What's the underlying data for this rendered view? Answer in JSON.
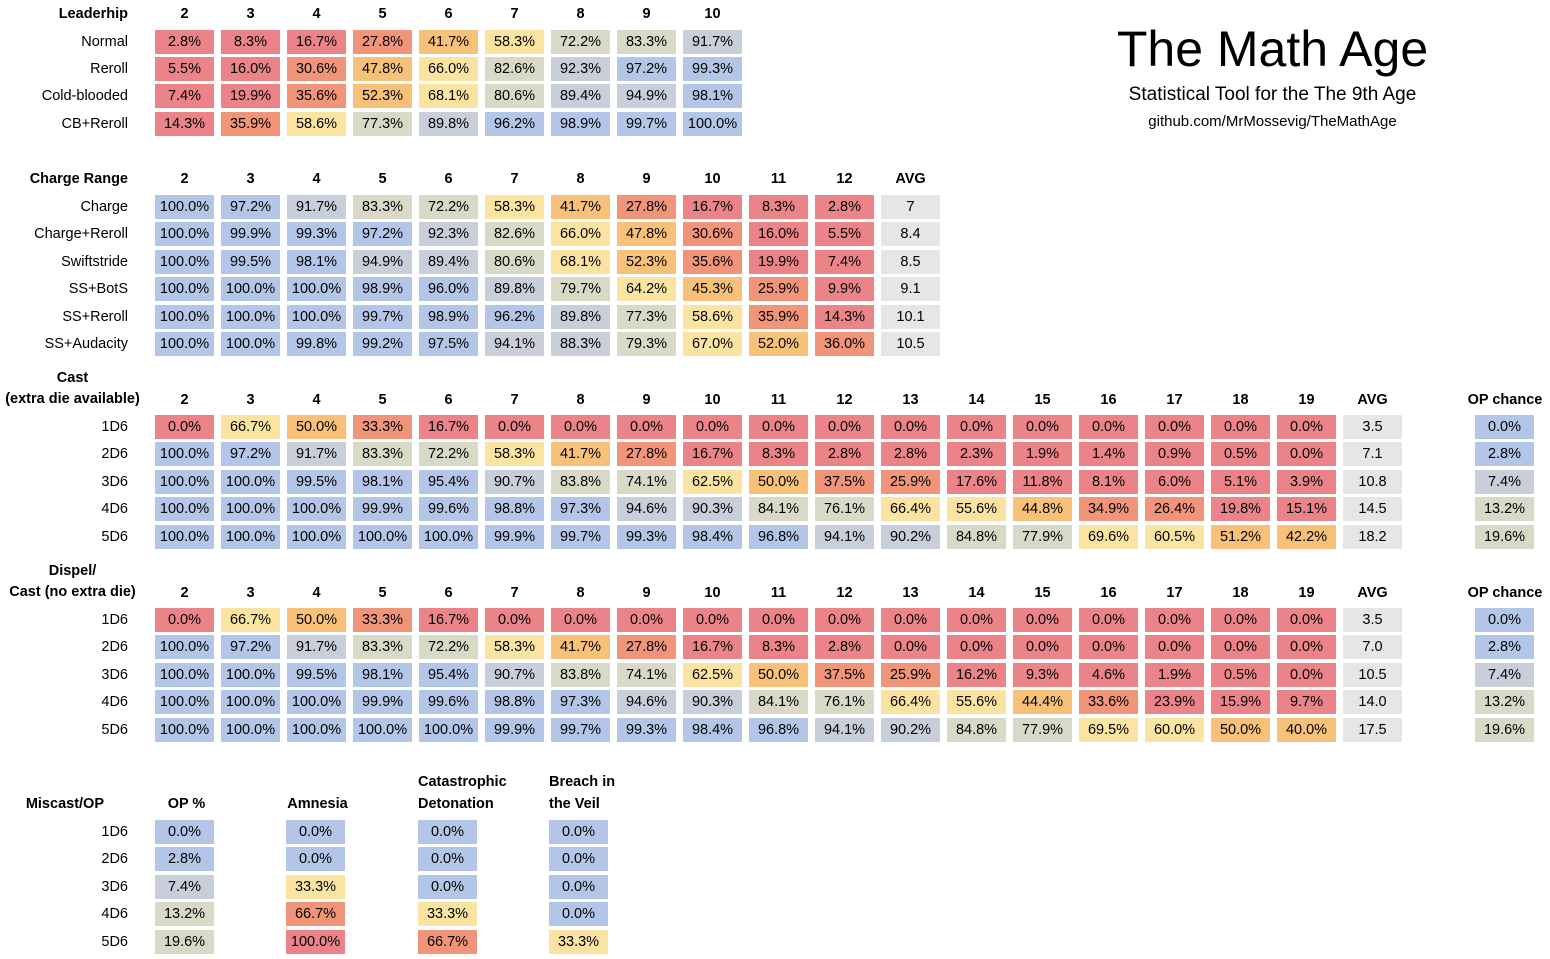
{
  "brand": {
    "title": "The Math Age",
    "subtitle": "Statistical Tool for the The 9th Age",
    "url": "github.com/MrMossevig/TheMathAge"
  },
  "palette": {
    "c1": "#b4c6e7",
    "c2": "#c9cedb",
    "c3": "#d9d9c7",
    "c4": "#fbe4a2",
    "c5": "#f8c17a",
    "c6": "#f0947a",
    "c7": "#ea8489",
    "gray": "#e6e6e6"
  },
  "leadership": {
    "title": "Leaderhip",
    "headers": [
      "2",
      "3",
      "4",
      "5",
      "6",
      "7",
      "8",
      "9",
      "10"
    ],
    "rows": [
      {
        "label": "Normal",
        "values": [
          "2.8%",
          "8.3%",
          "16.7%",
          "27.8%",
          "41.7%",
          "58.3%",
          "72.2%",
          "83.3%",
          "91.7%"
        ]
      },
      {
        "label": "Reroll",
        "values": [
          "5.5%",
          "16.0%",
          "30.6%",
          "47.8%",
          "66.0%",
          "82.6%",
          "92.3%",
          "97.2%",
          "99.3%"
        ]
      },
      {
        "label": "Cold-blooded",
        "values": [
          "7.4%",
          "19.9%",
          "35.6%",
          "52.3%",
          "68.1%",
          "80.6%",
          "89.4%",
          "94.9%",
          "98.1%"
        ]
      },
      {
        "label": "CB+Reroll",
        "values": [
          "14.3%",
          "35.9%",
          "58.6%",
          "77.3%",
          "89.8%",
          "96.2%",
          "98.9%",
          "99.7%",
          "100.0%"
        ]
      }
    ]
  },
  "charge": {
    "title": "Charge Range",
    "headers": [
      "2",
      "3",
      "4",
      "5",
      "6",
      "7",
      "8",
      "9",
      "10",
      "11",
      "12"
    ],
    "avg_header": "AVG",
    "rows": [
      {
        "label": "Charge",
        "values": [
          "100.0%",
          "97.2%",
          "91.7%",
          "83.3%",
          "72.2%",
          "58.3%",
          "41.7%",
          "27.8%",
          "16.7%",
          "8.3%",
          "2.8%"
        ],
        "avg": "7"
      },
      {
        "label": "Charge+Reroll",
        "values": [
          "100.0%",
          "99.9%",
          "99.3%",
          "97.2%",
          "92.3%",
          "82.6%",
          "66.0%",
          "47.8%",
          "30.6%",
          "16.0%",
          "5.5%"
        ],
        "avg": "8.4"
      },
      {
        "label": "Swiftstride",
        "values": [
          "100.0%",
          "99.5%",
          "98.1%",
          "94.9%",
          "89.4%",
          "80.6%",
          "68.1%",
          "52.3%",
          "35.6%",
          "19.9%",
          "7.4%"
        ],
        "avg": "8.5"
      },
      {
        "label": "SS+BotS",
        "values": [
          "100.0%",
          "100.0%",
          "100.0%",
          "98.9%",
          "96.0%",
          "89.8%",
          "79.7%",
          "64.2%",
          "45.3%",
          "25.9%",
          "9.9%"
        ],
        "avg": "9.1"
      },
      {
        "label": "SS+Reroll",
        "values": [
          "100.0%",
          "100.0%",
          "100.0%",
          "99.7%",
          "98.9%",
          "96.2%",
          "89.8%",
          "77.3%",
          "58.6%",
          "35.9%",
          "14.3%"
        ],
        "avg": "10.1"
      },
      {
        "label": "SS+Audacity",
        "values": [
          "100.0%",
          "100.0%",
          "99.8%",
          "99.2%",
          "97.5%",
          "94.1%",
          "88.3%",
          "79.3%",
          "67.0%",
          "52.0%",
          "36.0%"
        ],
        "avg": "10.5"
      }
    ]
  },
  "cast": {
    "title_line1": "Cast",
    "title_line2": "(extra die available)",
    "headers": [
      "2",
      "3",
      "4",
      "5",
      "6",
      "7",
      "8",
      "9",
      "10",
      "11",
      "12",
      "13",
      "14",
      "15",
      "16",
      "17",
      "18",
      "19"
    ],
    "avg_header": "AVG",
    "op_header": "OP chance",
    "rows": [
      {
        "label": "1D6",
        "values": [
          "0.0%",
          "66.7%",
          "50.0%",
          "33.3%",
          "16.7%",
          "0.0%",
          "0.0%",
          "0.0%",
          "0.0%",
          "0.0%",
          "0.0%",
          "0.0%",
          "0.0%",
          "0.0%",
          "0.0%",
          "0.0%",
          "0.0%",
          "0.0%"
        ],
        "avg": "3.5",
        "op": "0.0%"
      },
      {
        "label": "2D6",
        "values": [
          "100.0%",
          "97.2%",
          "91.7%",
          "83.3%",
          "72.2%",
          "58.3%",
          "41.7%",
          "27.8%",
          "16.7%",
          "8.3%",
          "2.8%",
          "2.8%",
          "2.3%",
          "1.9%",
          "1.4%",
          "0.9%",
          "0.5%",
          "0.0%"
        ],
        "avg": "7.1",
        "op": "2.8%"
      },
      {
        "label": "3D6",
        "values": [
          "100.0%",
          "100.0%",
          "99.5%",
          "98.1%",
          "95.4%",
          "90.7%",
          "83.8%",
          "74.1%",
          "62.5%",
          "50.0%",
          "37.5%",
          "25.9%",
          "17.6%",
          "11.8%",
          "8.1%",
          "6.0%",
          "5.1%",
          "3.9%"
        ],
        "avg": "10.8",
        "op": "7.4%"
      },
      {
        "label": "4D6",
        "values": [
          "100.0%",
          "100.0%",
          "100.0%",
          "99.9%",
          "99.6%",
          "98.8%",
          "97.3%",
          "94.6%",
          "90.3%",
          "84.1%",
          "76.1%",
          "66.4%",
          "55.6%",
          "44.8%",
          "34.9%",
          "26.4%",
          "19.8%",
          "15.1%"
        ],
        "avg": "14.5",
        "op": "13.2%"
      },
      {
        "label": "5D6",
        "values": [
          "100.0%",
          "100.0%",
          "100.0%",
          "100.0%",
          "100.0%",
          "99.9%",
          "99.7%",
          "99.3%",
          "98.4%",
          "96.8%",
          "94.1%",
          "90.2%",
          "84.8%",
          "77.9%",
          "69.6%",
          "60.5%",
          "51.2%",
          "42.2%"
        ],
        "avg": "18.2",
        "op": "19.6%"
      }
    ]
  },
  "dispel": {
    "title_line1": "Dispel/",
    "title_line2": "Cast (no extra die)",
    "headers": [
      "2",
      "3",
      "4",
      "5",
      "6",
      "7",
      "8",
      "9",
      "10",
      "11",
      "12",
      "13",
      "14",
      "15",
      "16",
      "17",
      "18",
      "19"
    ],
    "avg_header": "AVG",
    "op_header": "OP chance",
    "rows": [
      {
        "label": "1D6",
        "values": [
          "0.0%",
          "66.7%",
          "50.0%",
          "33.3%",
          "16.7%",
          "0.0%",
          "0.0%",
          "0.0%",
          "0.0%",
          "0.0%",
          "0.0%",
          "0.0%",
          "0.0%",
          "0.0%",
          "0.0%",
          "0.0%",
          "0.0%",
          "0.0%"
        ],
        "avg": "3.5",
        "op": "0.0%"
      },
      {
        "label": "2D6",
        "values": [
          "100.0%",
          "97.2%",
          "91.7%",
          "83.3%",
          "72.2%",
          "58.3%",
          "41.7%",
          "27.8%",
          "16.7%",
          "8.3%",
          "2.8%",
          "0.0%",
          "0.0%",
          "0.0%",
          "0.0%",
          "0.0%",
          "0.0%",
          "0.0%"
        ],
        "avg": "7.0",
        "op": "2.8%"
      },
      {
        "label": "3D6",
        "values": [
          "100.0%",
          "100.0%",
          "99.5%",
          "98.1%",
          "95.4%",
          "90.7%",
          "83.8%",
          "74.1%",
          "62.5%",
          "50.0%",
          "37.5%",
          "25.9%",
          "16.2%",
          "9.3%",
          "4.6%",
          "1.9%",
          "0.5%",
          "0.0%"
        ],
        "avg": "10.5",
        "op": "7.4%"
      },
      {
        "label": "4D6",
        "values": [
          "100.0%",
          "100.0%",
          "100.0%",
          "99.9%",
          "99.6%",
          "98.8%",
          "97.3%",
          "94.6%",
          "90.3%",
          "84.1%",
          "76.1%",
          "66.4%",
          "55.6%",
          "44.4%",
          "33.6%",
          "23.9%",
          "15.9%",
          "9.7%"
        ],
        "avg": "14.0",
        "op": "13.2%"
      },
      {
        "label": "5D6",
        "values": [
          "100.0%",
          "100.0%",
          "100.0%",
          "100.0%",
          "100.0%",
          "99.9%",
          "99.7%",
          "99.3%",
          "98.4%",
          "96.8%",
          "94.1%",
          "90.2%",
          "84.8%",
          "77.9%",
          "69.5%",
          "60.0%",
          "50.0%",
          "40.0%"
        ],
        "avg": "17.5",
        "op": "19.6%"
      }
    ]
  },
  "miscast": {
    "title": "Miscast/OP",
    "headers": [
      {
        "line1": "",
        "line2": "OP %"
      },
      {
        "line1": "",
        "line2": "Amnesia"
      },
      {
        "line1": "Catastrophic",
        "line2": "Detonation"
      },
      {
        "line1": "Breach in",
        "line2": "the Veil"
      }
    ],
    "rows": [
      {
        "label": "1D6",
        "values": [
          "0.0%",
          "0.0%",
          "0.0%",
          "0.0%"
        ]
      },
      {
        "label": "2D6",
        "values": [
          "2.8%",
          "0.0%",
          "0.0%",
          "0.0%"
        ]
      },
      {
        "label": "3D6",
        "values": [
          "7.4%",
          "33.3%",
          "0.0%",
          "0.0%"
        ]
      },
      {
        "label": "4D6",
        "values": [
          "13.2%",
          "66.7%",
          "33.3%",
          "0.0%"
        ]
      },
      {
        "label": "5D6",
        "values": [
          "19.6%",
          "100.0%",
          "66.7%",
          "33.3%"
        ]
      }
    ]
  }
}
